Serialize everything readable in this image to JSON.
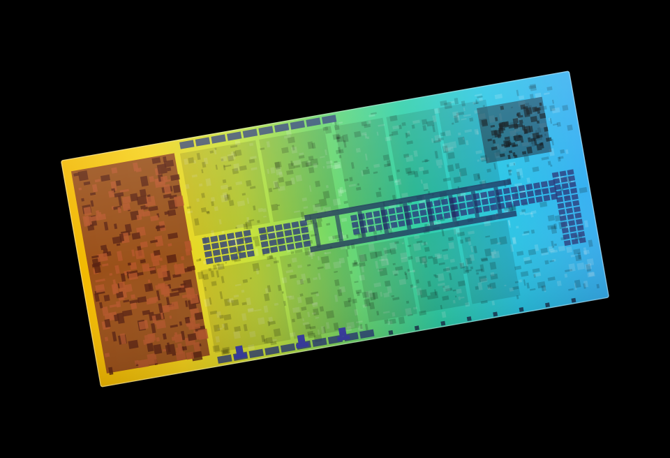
{
  "photo": {
    "subject": "processor-die",
    "background_color": "#000000",
    "gradient_colors": [
      "#f2b800",
      "#f6d21a",
      "#c9e23a",
      "#6fd86a",
      "#2fd0a8",
      "#2bc6e6",
      "#38b0f2"
    ],
    "left_logic_color": "#8a3c1c",
    "cache_color": "#2a3a7a",
    "pad_color": "#3b3fa8",
    "bus_color": "#1c2c5a"
  }
}
